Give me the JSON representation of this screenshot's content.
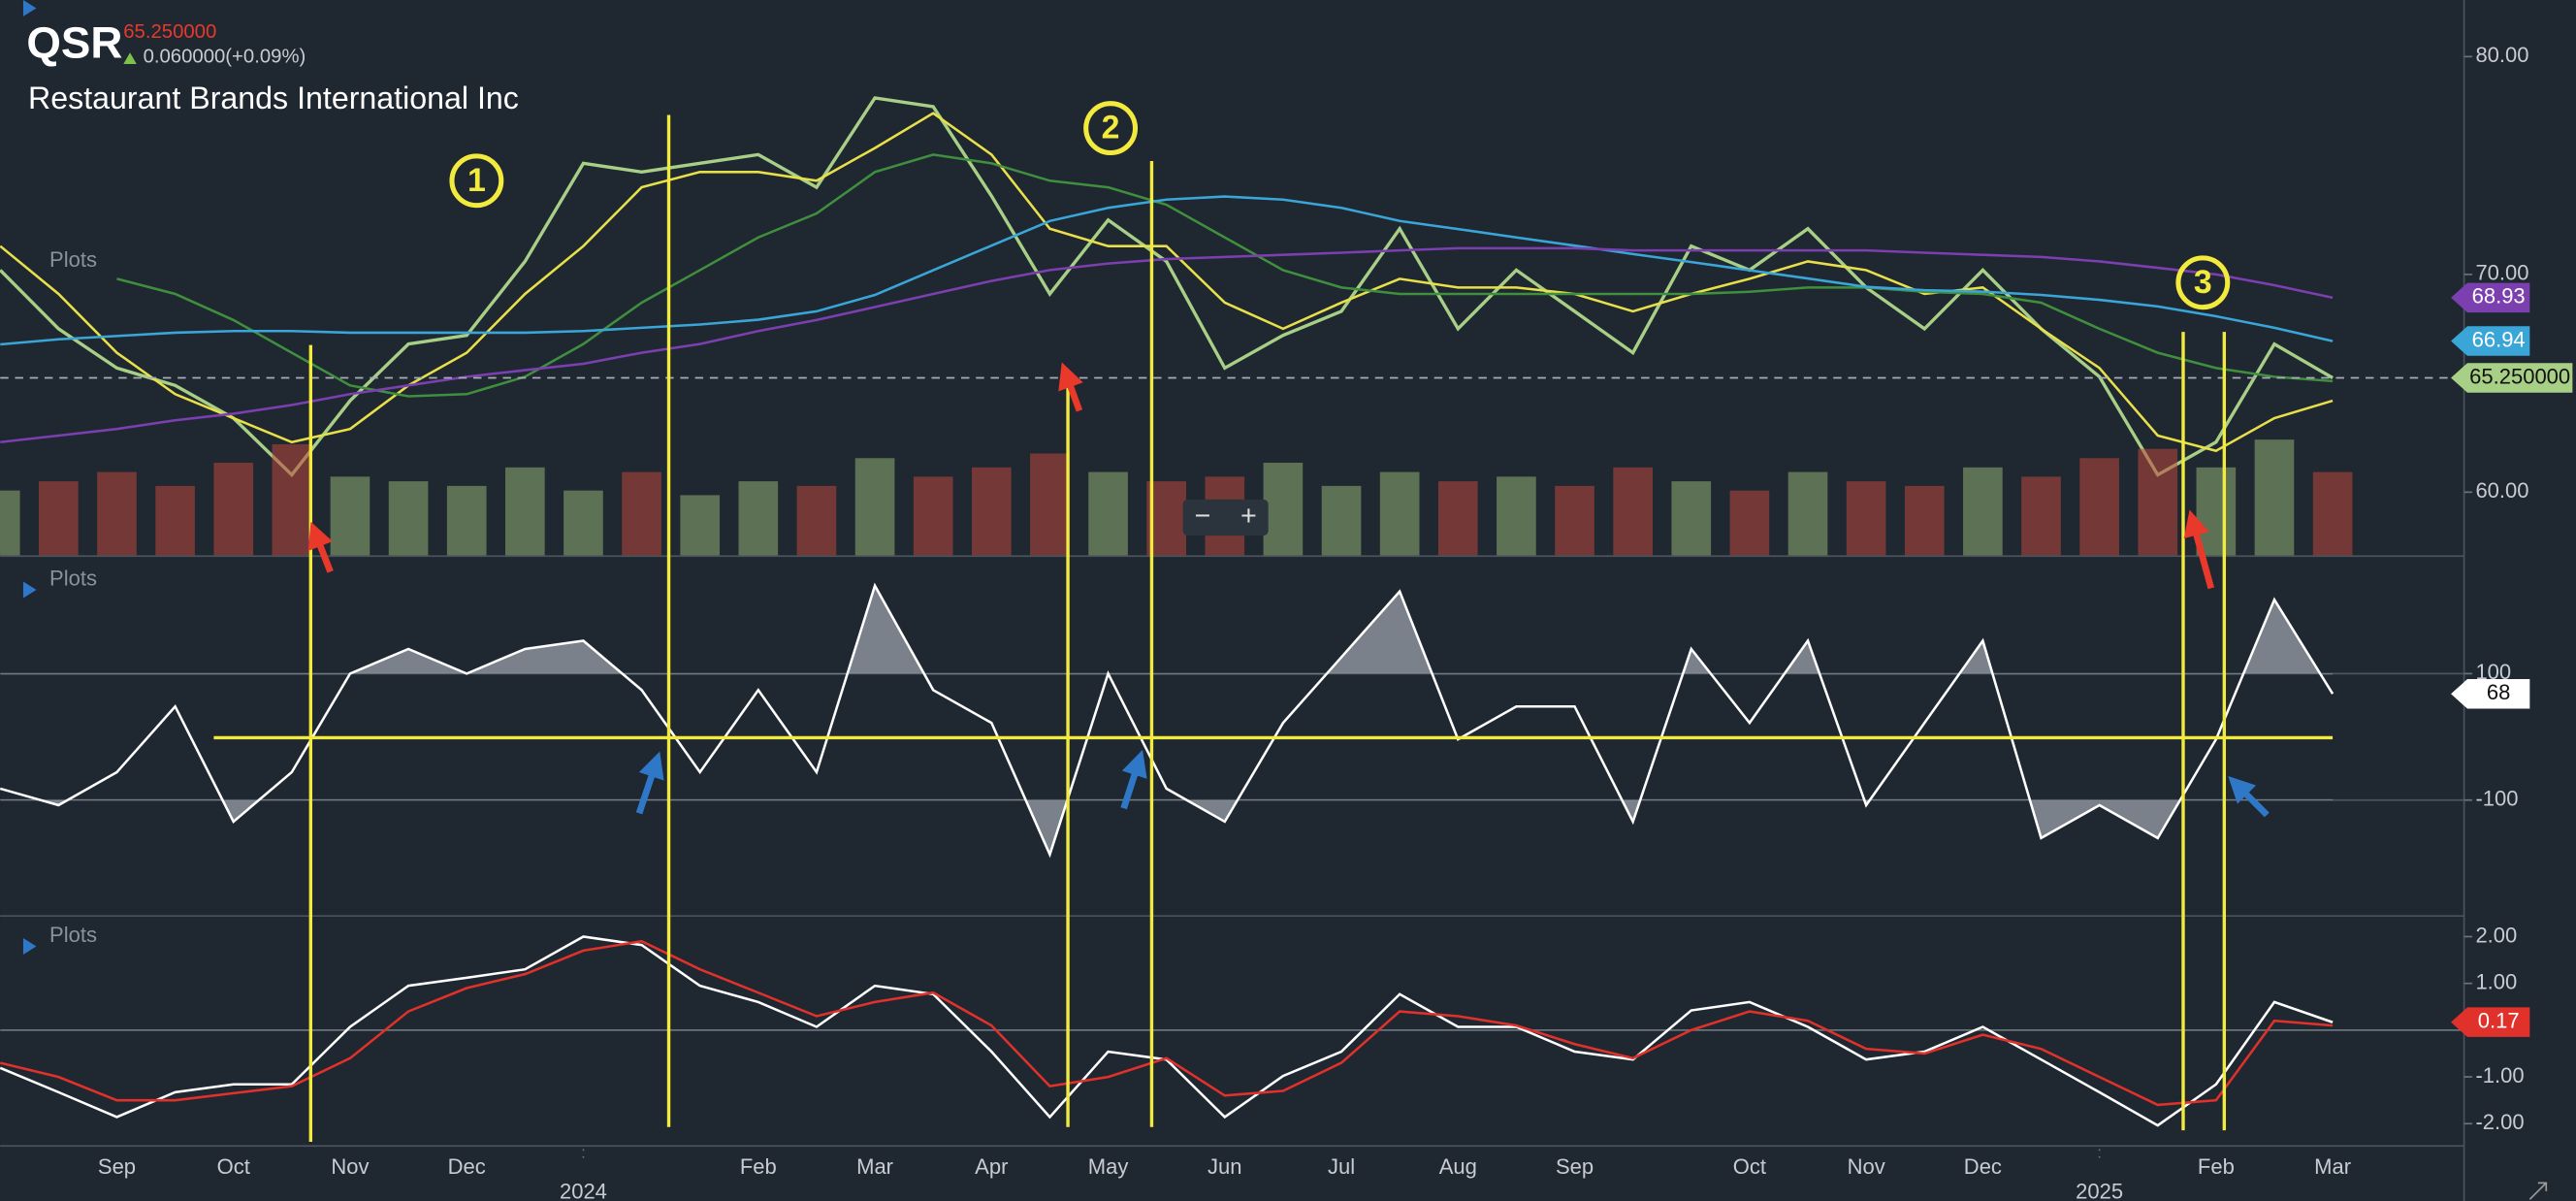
{
  "header": {
    "symbol": "QSR",
    "price": "65.250000",
    "change": "0.060000(+0.09%)",
    "name": "Restaurant Brands International Inc"
  },
  "controls": [
    "−",
    "+"
  ],
  "chart_data": [
    {
      "type": "line",
      "legend_title": "Plots",
      "annotations": [
        "1",
        "2",
        "3"
      ],
      "ylim": [
        57.1,
        82.6
      ],
      "yticks": [
        {
          "value": 60,
          "label": "60.00"
        },
        {
          "value": 70,
          "label": "70.00"
        },
        {
          "value": 80,
          "label": "80.00"
        }
      ],
      "y2lim": [
        0,
        12
      ],
      "current_price": {
        "value": 65.25,
        "label": "65.250000"
      },
      "series": [
        {
          "color": "#a8cf86",
          "values": [
            70.2,
            67.5,
            65.7,
            64.9,
            63.4,
            60.8,
            64.2,
            66.8,
            67.2,
            70.6,
            75.1,
            74.7,
            75.1,
            75.5,
            74.0,
            78.1,
            77.7,
            73.6,
            69.1,
            72.5,
            70.6,
            65.7,
            67.2,
            68.3,
            72.1,
            67.5,
            70.2,
            68.3,
            66.4,
            71.3,
            70.2,
            72.1,
            69.4,
            67.5,
            70.2,
            67.5,
            65.3,
            60.8,
            62.3,
            66.8,
            65.25
          ]
        },
        {
          "type": "bar",
          "axis": "y2",
          "color": "#8fae72",
          "down_color": "#b9473d",
          "values": [
            1.4,
            1.6,
            1.8,
            1.5,
            2.0,
            2.4,
            1.7,
            1.6,
            1.5,
            1.9,
            1.4,
            1.8,
            1.3,
            1.6,
            1.5,
            2.1,
            1.7,
            1.9,
            2.2,
            1.8,
            1.6,
            1.7,
            2.0,
            1.5,
            1.8,
            1.6,
            1.7,
            1.5,
            1.9,
            1.6,
            1.4,
            1.8,
            1.6,
            1.5,
            1.9,
            1.7,
            2.1,
            2.3,
            1.9,
            2.5,
            1.8
          ]
        },
        {
          "color": "#e8e04a",
          "values": [
            71.3,
            69.1,
            66.4,
            64.5,
            63.4,
            62.3,
            62.9,
            64.9,
            66.4,
            69.1,
            71.3,
            74.0,
            74.7,
            74.7,
            74.3,
            75.8,
            77.4,
            75.5,
            72.1,
            71.3,
            71.3,
            68.7,
            67.5,
            68.7,
            69.8,
            69.4,
            69.4,
            69.1,
            68.3,
            69.1,
            69.8,
            70.6,
            70.2,
            69.1,
            69.4,
            67.5,
            65.7,
            62.6,
            61.9,
            63.4,
            64.2
          ]
        },
        {
          "color": "#3f8f3f",
          "values": [
            null,
            null,
            69.8,
            69.1,
            67.9,
            66.4,
            64.9,
            64.4,
            64.5,
            65.3,
            66.8,
            68.7,
            70.2,
            71.7,
            72.8,
            74.7,
            75.5,
            75.1,
            74.3,
            74.0,
            73.2,
            71.7,
            70.2,
            69.4,
            69.1,
            69.1,
            69.1,
            69.1,
            69.1,
            69.1,
            69.2,
            69.4,
            69.4,
            69.2,
            69.1,
            68.7,
            67.5,
            66.4,
            65.7,
            65.3,
            65.1
          ]
        },
        {
          "color": "#3aa6d8",
          "badge": true,
          "values": [
            66.79,
            67.02,
            67.17,
            67.32,
            67.4,
            67.4,
            67.32,
            67.32,
            67.32,
            67.32,
            67.4,
            67.55,
            67.7,
            67.92,
            68.3,
            69.06,
            70.19,
            71.32,
            72.45,
            73.06,
            73.43,
            73.58,
            73.43,
            73.06,
            72.45,
            72.08,
            71.7,
            71.32,
            70.94,
            70.57,
            70.19,
            69.81,
            69.43,
            69.28,
            69.21,
            69.06,
            68.83,
            68.53,
            68.08,
            67.55,
            66.94
          ]
        },
        {
          "color": "#7b3fb0",
          "badge": true,
          "values": [
            62.3,
            62.6,
            62.9,
            63.3,
            63.6,
            64.0,
            64.5,
            64.9,
            65.3,
            65.6,
            65.9,
            66.4,
            66.8,
            67.4,
            67.9,
            68.5,
            69.1,
            69.7,
            70.2,
            70.5,
            70.7,
            70.8,
            70.9,
            71.0,
            71.1,
            71.2,
            71.2,
            71.2,
            71.1,
            71.1,
            71.1,
            71.1,
            71.1,
            71.0,
            70.9,
            70.8,
            70.6,
            70.3,
            70.0,
            69.5,
            68.93
          ]
        }
      ]
    },
    {
      "type": "line",
      "legend_title": "Plots",
      "ylim": [
        -282,
        282
      ],
      "yticks": [
        100,
        -100
      ],
      "grid": true,
      "fill_beyond": [
        100,
        -100
      ],
      "series": [
        {
          "color": "#ffffff",
          "badge": true,
          "values": [
            -82,
            -108,
            -56,
            48,
            -134,
            -56,
            100,
            139,
            100,
            139,
            152,
            74,
            -56,
            74,
            -56,
            239,
            74,
            22,
            -186,
            100,
            -82,
            -134,
            22,
            126,
            230,
            -4,
            48,
            48,
            -134,
            139,
            22,
            152,
            -108,
            22,
            152,
            -160,
            -108,
            -160,
            -4,
            217,
            68
          ]
        }
      ]
    },
    {
      "type": "line",
      "legend_title": "Plots",
      "ylim": [
        -2.46,
        2.46
      ],
      "yticks": [
        {
          "value": 2,
          "label": "2.00"
        },
        {
          "value": 1,
          "label": "1.00"
        },
        {
          "value": -1,
          "label": "-1.00"
        },
        {
          "value": -2,
          "label": "-2.00"
        }
      ],
      "categories": [
        null,
        null,
        "Sep",
        null,
        "Oct",
        null,
        "Nov",
        null,
        "Dec",
        null,
        "2024",
        null,
        null,
        "Feb",
        null,
        "Mar",
        null,
        "Apr",
        null,
        "May",
        null,
        "Jun",
        null,
        "Jul",
        null,
        "Aug",
        null,
        "Sep",
        null,
        null,
        "Oct",
        null,
        "Nov",
        null,
        "Dec",
        null,
        "2025",
        null,
        "Feb",
        null,
        "Mar"
      ],
      "series": [
        {
          "color": "#ffffff",
          "badge": true,
          "badge_color": "#e0312b",
          "values": [
            -0.81,
            -1.33,
            -1.86,
            -1.33,
            -1.16,
            -1.16,
            0.07,
            0.95,
            1.12,
            1.3,
            2.0,
            1.82,
            0.95,
            0.6,
            0.07,
            0.95,
            0.77,
            -0.46,
            -1.86,
            -0.46,
            -0.63,
            -1.86,
            -0.98,
            -0.46,
            0.77,
            0.07,
            0.07,
            -0.46,
            -0.63,
            0.42,
            0.6,
            0.07,
            -0.63,
            -0.46,
            0.07,
            -0.63,
            -1.33,
            -2.04,
            -1.16,
            0.6,
            0.17
          ]
        },
        {
          "color": "#e0312b",
          "values": [
            -0.7,
            -1.0,
            -1.5,
            -1.5,
            -1.35,
            -1.2,
            -0.6,
            0.4,
            0.9,
            1.2,
            1.7,
            1.9,
            1.3,
            0.8,
            0.3,
            0.6,
            0.8,
            0.1,
            -1.2,
            -1.0,
            -0.6,
            -1.4,
            -1.3,
            -0.7,
            0.4,
            0.3,
            0.1,
            -0.3,
            -0.6,
            0.0,
            0.4,
            0.2,
            -0.4,
            -0.5,
            -0.1,
            -0.4,
            -1.0,
            -1.6,
            -1.5,
            0.2,
            0.1
          ]
        }
      ]
    }
  ]
}
